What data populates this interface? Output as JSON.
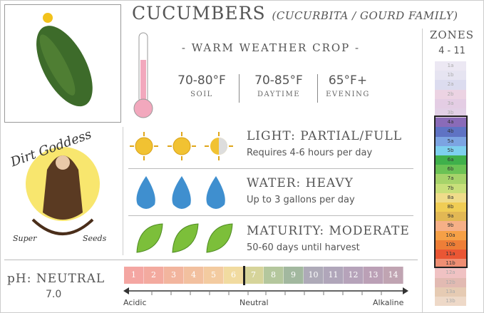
{
  "title": {
    "name": "CUCUMBERS",
    "family": "(CUCURBITA / GOURD FAMILY)"
  },
  "crop_type": "- WARM WEATHER CROP -",
  "temperatures": [
    {
      "value": "70-80°F",
      "label": "SOIL"
    },
    {
      "value": "70-85°F",
      "label": "DAYTIME"
    },
    {
      "value": "65°F+",
      "label": "EVENING"
    }
  ],
  "logo": {
    "text": "Dirt Goddess Super Seeds"
  },
  "light": {
    "title": "LIGHT: PARTIAL/FULL",
    "detail": "Requires 4-6 hours per day",
    "icon": "sun-icon",
    "level": 2.5,
    "max": 3
  },
  "water": {
    "title": "WATER: HEAVY",
    "detail": "Up to 3 gallons per day",
    "icon": "water-drop-icon",
    "level": 3,
    "max": 3
  },
  "maturity": {
    "title": "MATURITY: MODERATE",
    "detail": "50-60 days until harvest",
    "icon": "leaf-icon",
    "level": 3,
    "max": 3
  },
  "ph": {
    "title": "pH: NEUTRAL",
    "value": "7.0",
    "scale": [
      "1",
      "2",
      "3",
      "4",
      "5",
      "6",
      "7",
      "8",
      "9",
      "10",
      "11",
      "12",
      "13",
      "14"
    ],
    "colors": [
      "#f4a6a2",
      "#f3aa9f",
      "#f2b59e",
      "#f2c09f",
      "#f3cba0",
      "#f1dba0",
      "#d6d49a",
      "#b4c79d",
      "#a2b89f",
      "#aeaab8",
      "#b0a6ba",
      "#b6a3ba",
      "#bba0b6",
      "#c0a4b2"
    ],
    "marker": 6.5,
    "labels": {
      "left": "Acidic",
      "center": "Neutral",
      "right": "Alkaline"
    }
  },
  "zones": {
    "title": "ZONES",
    "range": "4 - 11",
    "highlight": [
      "4a",
      "11b"
    ],
    "list": [
      [
        "1a",
        "#ece8f3"
      ],
      [
        "1b",
        "#e6e4f1"
      ],
      [
        "2a",
        "#dcdcef"
      ],
      [
        "2b",
        "#ecd3e3"
      ],
      [
        "3a",
        "#e4cde4"
      ],
      [
        "3b",
        "#e2d0e6"
      ],
      [
        "4a",
        "#8a6bb8"
      ],
      [
        "4b",
        "#5f73c4"
      ],
      [
        "5a",
        "#7ca4e2"
      ],
      [
        "5b",
        "#7dd0ee"
      ],
      [
        "6a",
        "#3fb04b"
      ],
      [
        "6b",
        "#6bc255"
      ],
      [
        "7a",
        "#a6d36a"
      ],
      [
        "7b",
        "#c8df7a"
      ],
      [
        "8a",
        "#efdc8a"
      ],
      [
        "8b",
        "#f0cd55"
      ],
      [
        "9a",
        "#e2b854"
      ],
      [
        "9b",
        "#f6b087"
      ],
      [
        "10a",
        "#f6a046"
      ],
      [
        "10b",
        "#ee7e37"
      ],
      [
        "11a",
        "#ea5634"
      ],
      [
        "11b",
        "#ef8e73"
      ],
      [
        "12a",
        "#f0c2c3"
      ],
      [
        "12b",
        "#e2bab2"
      ],
      [
        "13a",
        "#e6cbb3"
      ],
      [
        "13b",
        "#eed9c8"
      ]
    ]
  }
}
